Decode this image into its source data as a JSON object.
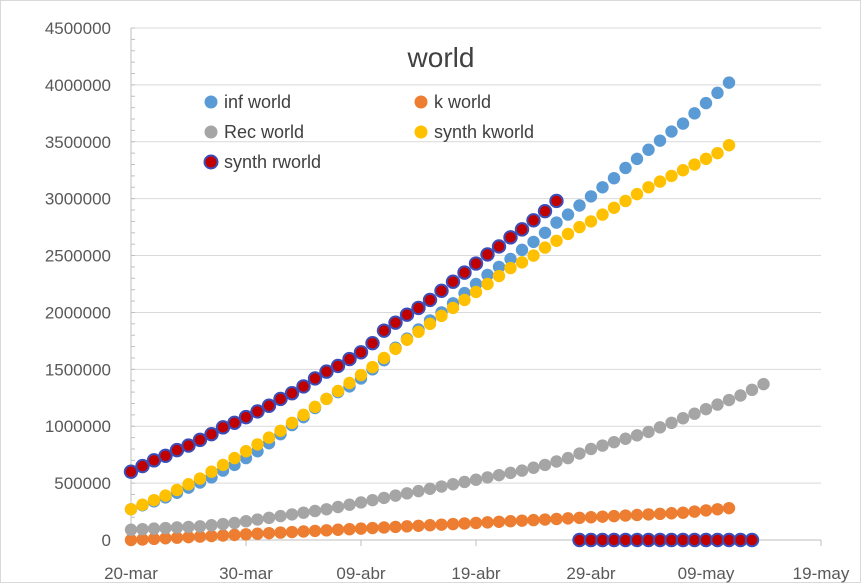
{
  "chart_data": {
    "type": "scatter",
    "title": "world",
    "xlabel": "",
    "ylabel": "",
    "x_ticks": [
      "20-mar",
      "30-mar",
      "09-abr",
      "19-abr",
      "29-abr",
      "09-may",
      "19-may"
    ],
    "y_ticks": [
      "0",
      "500000",
      "1000000",
      "1500000",
      "2000000",
      "2500000",
      "3000000",
      "3500000",
      "4000000",
      "4500000"
    ],
    "ylim": [
      0,
      4500000
    ],
    "x_range_days": [
      0,
      60
    ],
    "grid": "horizontal",
    "legend_position": "top-left",
    "series": [
      {
        "name": "inf world",
        "color": "#5b9bd5",
        "x_start_day": 0,
        "values": [
          270000,
          305000,
          340000,
          375000,
          415000,
          460000,
          505000,
          550000,
          610000,
          660000,
          720000,
          780000,
          850000,
          930000,
          1010000,
          1080000,
          1160000,
          1240000,
          1300000,
          1350000,
          1420000,
          1500000,
          1580000,
          1690000,
          1770000,
          1850000,
          1930000,
          2000000,
          2080000,
          2170000,
          2250000,
          2330000,
          2400000,
          2470000,
          2550000,
          2620000,
          2700000,
          2790000,
          2860000,
          2940000,
          3020000,
          3100000,
          3180000,
          3270000,
          3350000,
          3430000,
          3510000,
          3590000,
          3660000,
          3750000,
          3840000,
          3930000,
          4020000
        ]
      },
      {
        "name": "k world",
        "color": "#ed7d31",
        "x_start_day": 0,
        "values": [
          0,
          5000,
          10000,
          15000,
          20000,
          25000,
          30000,
          35000,
          40000,
          45000,
          50000,
          55000,
          60000,
          65000,
          70000,
          75000,
          80000,
          85000,
          90000,
          95000,
          100000,
          105000,
          110000,
          115000,
          120000,
          125000,
          130000,
          135000,
          140000,
          145000,
          150000,
          155000,
          160000,
          165000,
          170000,
          175000,
          180000,
          185000,
          190000,
          195000,
          200000,
          205000,
          210000,
          215000,
          220000,
          225000,
          230000,
          235000,
          240000,
          250000,
          260000,
          270000,
          280000
        ]
      },
      {
        "name": "Rec world",
        "color": "#a5a5a5",
        "x_start_day": 0,
        "values": [
          90000,
          95000,
          100000,
          105000,
          110000,
          115000,
          120000,
          130000,
          140000,
          150000,
          165000,
          180000,
          195000,
          210000,
          225000,
          240000,
          255000,
          270000,
          290000,
          310000,
          330000,
          350000,
          370000,
          390000,
          410000,
          430000,
          450000,
          470000,
          490000,
          510000,
          530000,
          550000,
          570000,
          590000,
          610000,
          635000,
          660000,
          690000,
          720000,
          760000,
          800000,
          830000,
          860000,
          890000,
          920000,
          950000,
          990000,
          1030000,
          1070000,
          1110000,
          1150000,
          1190000,
          1230000,
          1270000,
          1320000,
          1370000
        ]
      },
      {
        "name": "synth kworld",
        "color": "#ffc000",
        "x_start_day": 0,
        "values": [
          270000,
          310000,
          350000,
          390000,
          440000,
          490000,
          540000,
          600000,
          660000,
          720000,
          780000,
          840000,
          900000,
          960000,
          1030000,
          1100000,
          1170000,
          1240000,
          1310000,
          1380000,
          1450000,
          1520000,
          1600000,
          1680000,
          1760000,
          1830000,
          1900000,
          1970000,
          2040000,
          2110000,
          2180000,
          2250000,
          2320000,
          2390000,
          2440000,
          2500000,
          2570000,
          2630000,
          2690000,
          2750000,
          2800000,
          2860000,
          2920000,
          2980000,
          3040000,
          3100000,
          3150000,
          3200000,
          3250000,
          3300000,
          3350000,
          3400000,
          3470000
        ]
      },
      {
        "name": "synth rworld",
        "color": "#c00000",
        "edge_color": "#3d4db7",
        "x_start_day": 0,
        "values": [
          600000,
          650000,
          700000,
          740000,
          790000,
          830000,
          880000,
          930000,
          990000,
          1030000,
          1080000,
          1130000,
          1180000,
          1240000,
          1290000,
          1350000,
          1420000,
          1480000,
          1530000,
          1590000,
          1650000,
          1730000,
          1840000,
          1910000,
          1980000,
          2040000,
          2110000,
          2190000,
          2270000,
          2350000,
          2430000,
          2510000,
          2580000,
          2660000,
          2730000,
          2810000,
          2890000,
          2980000
        ],
        "tail_x_start_day": 39,
        "tail_values": [
          0,
          0,
          0,
          0,
          0,
          0,
          0,
          0,
          0,
          0,
          0,
          0,
          0,
          0,
          0,
          0
        ]
      }
    ]
  }
}
